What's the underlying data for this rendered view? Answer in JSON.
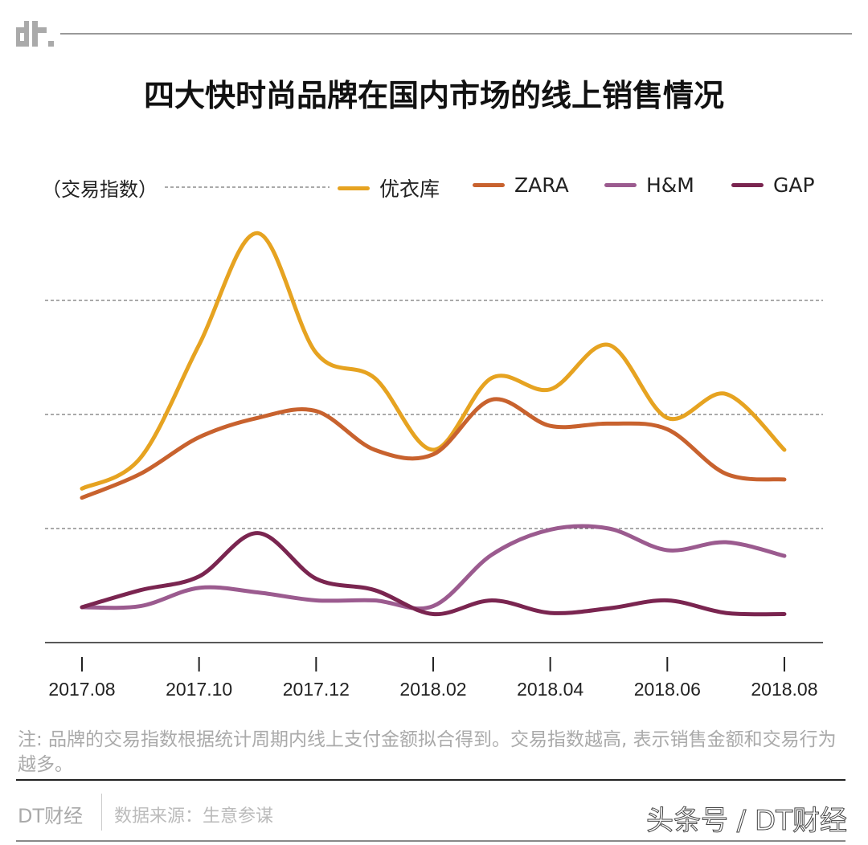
{
  "logo": "dt.",
  "title": "四大快时尚品牌在国内市场的线上销售情况",
  "note": "注: 品牌的交易指数根据统计周期内线上支付金额拟合得到。交易指数越高, 表示销售金额和交易行为越多。",
  "brand": "DT财经",
  "source": "数据来源：生意参谋",
  "watermark": "头条号 / DT财经",
  "chart_data": {
    "type": "line",
    "title": "四大快时尚品牌在国内市场的线上销售情况",
    "ylabel": "（交易指数）",
    "xlabel": "",
    "x": [
      "2017.08",
      "2017.09",
      "2017.10",
      "2017.11",
      "2017.12",
      "2018.01",
      "2018.02",
      "2018.03",
      "2018.04",
      "2018.05",
      "2018.06",
      "2018.07",
      "2018.08"
    ],
    "xticks": [
      "2017.08",
      "2017.10",
      "2017.12",
      "2018.02",
      "2018.04",
      "2018.06",
      "2018.08"
    ],
    "ylim": [
      0,
      4.5
    ],
    "grid": "horizontal dashed, no y tick labels",
    "legend": "top",
    "series": [
      {
        "name": "优衣库",
        "color": "#e6a321",
        "values": [
          1.35,
          1.62,
          2.61,
          3.59,
          2.54,
          2.32,
          1.69,
          2.32,
          2.22,
          2.61,
          1.97,
          2.18,
          1.69
        ]
      },
      {
        "name": "ZARA",
        "color": "#c8622e",
        "values": [
          1.27,
          1.48,
          1.8,
          1.97,
          2.03,
          1.69,
          1.65,
          2.13,
          1.9,
          1.92,
          1.87,
          1.48,
          1.43
        ]
      },
      {
        "name": "H&M",
        "color": "#9b5b8f",
        "values": [
          0.31,
          0.32,
          0.48,
          0.44,
          0.37,
          0.37,
          0.32,
          0.77,
          0.99,
          1.0,
          0.81,
          0.88,
          0.76
        ]
      },
      {
        "name": "GAP",
        "color": "#7a2550",
        "values": [
          0.31,
          0.46,
          0.58,
          0.96,
          0.56,
          0.46,
          0.25,
          0.37,
          0.26,
          0.3,
          0.37,
          0.26,
          0.25
        ]
      }
    ]
  }
}
